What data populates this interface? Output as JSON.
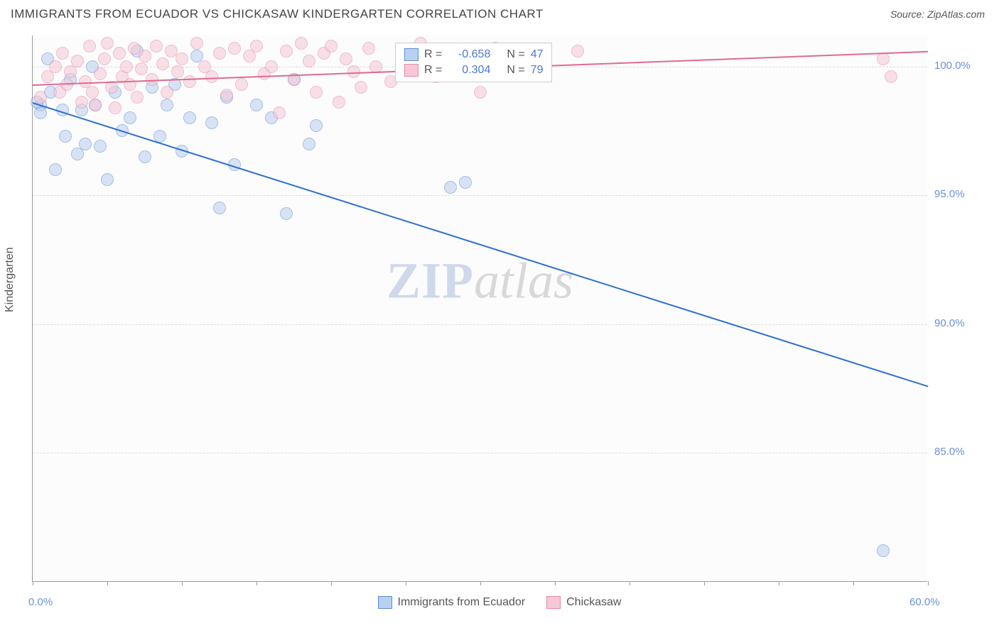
{
  "title": "IMMIGRANTS FROM ECUADOR VS CHICKASAW KINDERGARTEN CORRELATION CHART",
  "source_label": "Source: ZipAtlas.com",
  "y_axis_label": "Kindergarten",
  "watermark": {
    "zip": "ZIP",
    "atlas": "atlas"
  },
  "chart": {
    "type": "scatter",
    "plot_bg": "#fcfcfc",
    "grid_color": "#dddddd",
    "xlim": [
      0,
      60
    ],
    "ylim": [
      80,
      101.2
    ],
    "x_ticks": [
      0,
      5,
      10,
      15,
      20,
      25,
      30,
      35,
      40,
      45,
      50,
      55,
      60
    ],
    "x_tick_labels": {
      "0": "0.0%",
      "60": "60.0%"
    },
    "y_gridlines": [
      85,
      90,
      95,
      100
    ],
    "y_tick_labels": {
      "85": "85.0%",
      "90": "90.0%",
      "95": "95.0%",
      "100": "100.0%"
    },
    "series": [
      {
        "name": "Immigrants from Ecuador",
        "color_fill": "#b9d0f0",
        "color_border": "#5b8dd6",
        "line_color": "#2e6fd0",
        "R": "-0.658",
        "N": "47",
        "trend": {
          "x1": 0,
          "y1": 98.6,
          "x2": 60,
          "y2": 87.6
        },
        "points": [
          [
            0.5,
            98.5
          ],
          [
            0.5,
            98.2
          ],
          [
            0.3,
            98.6
          ],
          [
            1.0,
            100.3
          ],
          [
            1.2,
            99.0
          ],
          [
            1.5,
            96.0
          ],
          [
            2.0,
            98.3
          ],
          [
            2.5,
            99.5
          ],
          [
            2.2,
            97.3
          ],
          [
            3.0,
            96.6
          ],
          [
            3.3,
            98.3
          ],
          [
            3.5,
            97.0
          ],
          [
            4.0,
            100.0
          ],
          [
            4.2,
            98.5
          ],
          [
            4.5,
            96.9
          ],
          [
            5.0,
            95.6
          ],
          [
            5.5,
            99.0
          ],
          [
            6.0,
            97.5
          ],
          [
            6.5,
            98.0
          ],
          [
            7.0,
            100.6
          ],
          [
            7.5,
            96.5
          ],
          [
            8.0,
            99.2
          ],
          [
            8.5,
            97.3
          ],
          [
            9.0,
            98.5
          ],
          [
            9.5,
            99.3
          ],
          [
            10.0,
            96.7
          ],
          [
            10.5,
            98.0
          ],
          [
            11.0,
            100.4
          ],
          [
            12.0,
            97.8
          ],
          [
            12.5,
            94.5
          ],
          [
            13.0,
            98.8
          ],
          [
            13.5,
            96.2
          ],
          [
            15.0,
            98.5
          ],
          [
            16.0,
            98.0
          ],
          [
            17.0,
            94.3
          ],
          [
            17.5,
            99.5
          ],
          [
            18.5,
            97.0
          ],
          [
            19.0,
            97.7
          ],
          [
            28.0,
            95.3
          ],
          [
            29.0,
            95.5
          ],
          [
            57.0,
            81.2
          ]
        ]
      },
      {
        "name": "Chickasaw",
        "color_fill": "#f6c8d6",
        "color_border": "#e68aa8",
        "line_color": "#e06a93",
        "R": "0.304",
        "N": "79",
        "trend": {
          "x1": 0,
          "y1": 99.3,
          "x2": 60,
          "y2": 100.6
        },
        "points": [
          [
            0.5,
            98.8
          ],
          [
            1.0,
            99.6
          ],
          [
            1.5,
            100.0
          ],
          [
            1.8,
            99.0
          ],
          [
            2.0,
            100.5
          ],
          [
            2.3,
            99.3
          ],
          [
            2.5,
            99.8
          ],
          [
            3.0,
            100.2
          ],
          [
            3.3,
            98.6
          ],
          [
            3.5,
            99.4
          ],
          [
            3.8,
            100.8
          ],
          [
            4.0,
            99.0
          ],
          [
            4.2,
            98.5
          ],
          [
            4.5,
            99.7
          ],
          [
            4.8,
            100.3
          ],
          [
            5.0,
            100.9
          ],
          [
            5.3,
            99.2
          ],
          [
            5.5,
            98.4
          ],
          [
            5.8,
            100.5
          ],
          [
            6.0,
            99.6
          ],
          [
            6.3,
            100.0
          ],
          [
            6.5,
            99.3
          ],
          [
            6.8,
            100.7
          ],
          [
            7.0,
            98.8
          ],
          [
            7.3,
            99.9
          ],
          [
            7.5,
            100.4
          ],
          [
            8.0,
            99.5
          ],
          [
            8.3,
            100.8
          ],
          [
            8.7,
            100.1
          ],
          [
            9.0,
            99.0
          ],
          [
            9.3,
            100.6
          ],
          [
            9.7,
            99.8
          ],
          [
            10.0,
            100.3
          ],
          [
            10.5,
            99.4
          ],
          [
            11.0,
            100.9
          ],
          [
            11.5,
            100.0
          ],
          [
            12.0,
            99.6
          ],
          [
            12.5,
            100.5
          ],
          [
            13.0,
            98.9
          ],
          [
            13.5,
            100.7
          ],
          [
            14.0,
            99.3
          ],
          [
            14.5,
            100.4
          ],
          [
            15.0,
            100.8
          ],
          [
            15.5,
            99.7
          ],
          [
            16.0,
            100.0
          ],
          [
            16.5,
            98.2
          ],
          [
            17.0,
            100.6
          ],
          [
            17.5,
            99.5
          ],
          [
            18.0,
            100.9
          ],
          [
            18.5,
            100.2
          ],
          [
            19.0,
            99.0
          ],
          [
            19.5,
            100.5
          ],
          [
            20.0,
            100.8
          ],
          [
            20.5,
            98.6
          ],
          [
            21.0,
            100.3
          ],
          [
            21.5,
            99.8
          ],
          [
            22.0,
            99.2
          ],
          [
            22.5,
            100.7
          ],
          [
            23.0,
            100.0
          ],
          [
            24.0,
            99.4
          ],
          [
            25.0,
            100.6
          ],
          [
            26.0,
            100.9
          ],
          [
            27.0,
            99.6
          ],
          [
            28.0,
            100.4
          ],
          [
            29.0,
            100.0
          ],
          [
            30.0,
            99.0
          ],
          [
            31.0,
            100.7
          ],
          [
            32.0,
            100.2
          ],
          [
            34.0,
            100.5
          ],
          [
            36.5,
            100.6
          ],
          [
            57.0,
            100.3
          ],
          [
            57.5,
            99.6
          ]
        ]
      }
    ],
    "legend_box": {
      "R_label": "R =",
      "N_label": "N ="
    },
    "point_radius": 9,
    "point_opacity": 0.55
  },
  "bottom_legend": [
    {
      "label": "Immigrants from Ecuador",
      "fill": "#b9d0f0",
      "border": "#5b8dd6"
    },
    {
      "label": "Chickasaw",
      "fill": "#f6c8d6",
      "border": "#e68aa8"
    }
  ]
}
